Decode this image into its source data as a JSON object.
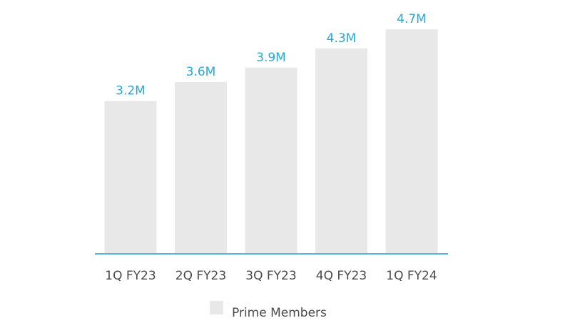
{
  "chart_data": {
    "type": "bar",
    "categories": [
      "1Q FY23",
      "2Q FY23",
      "3Q FY23",
      "4Q FY23",
      "1Q FY24"
    ],
    "series": [
      {
        "name": "Prime Members",
        "values": [
          3.2,
          3.6,
          3.9,
          4.3,
          4.7
        ]
      }
    ],
    "data_labels": [
      "3.2M",
      "3.6M",
      "3.9M",
      "4.3M",
      "4.7M"
    ],
    "unit": "M",
    "ylim": [
      0,
      5.3
    ],
    "grid": false,
    "legend_position": "bottom-center",
    "colors": {
      "bar": "#e8e8e8",
      "value_label": "#29a8d8",
      "axis": "#4fb8e0",
      "tick_label": "#4a4a4a",
      "legend_label": "#4a4a4a"
    }
  }
}
